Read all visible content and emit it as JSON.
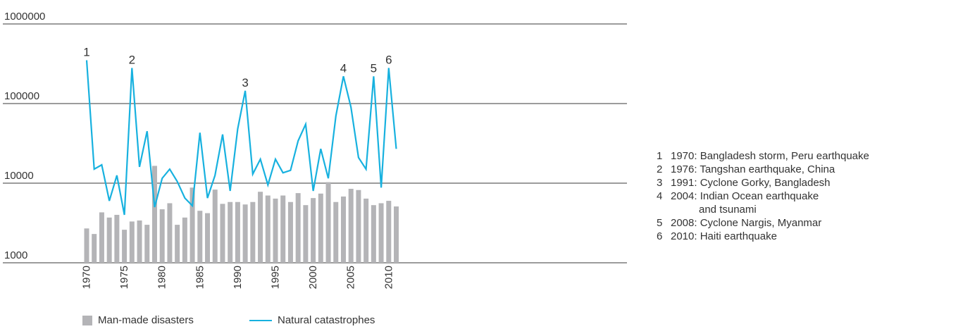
{
  "chart_data": {
    "type": "bar+line",
    "y_scale": "log",
    "ylim": [
      1000,
      1000000
    ],
    "y_ticks": [
      {
        "value": 1000,
        "label": "1000"
      },
      {
        "value": 10000,
        "label": "10000"
      },
      {
        "value": 100000,
        "label": "100000"
      },
      {
        "value": 1000000,
        "label": "1000000"
      }
    ],
    "x_ticks": [
      "1970",
      "1975",
      "1980",
      "1985",
      "1990",
      "1995",
      "2000",
      "2005",
      "2010"
    ],
    "years": [
      1970,
      1971,
      1972,
      1973,
      1974,
      1975,
      1976,
      1977,
      1978,
      1979,
      1980,
      1981,
      1982,
      1983,
      1984,
      1985,
      1986,
      1987,
      1988,
      1989,
      1990,
      1991,
      1992,
      1993,
      1994,
      1995,
      1996,
      1997,
      1998,
      1999,
      2000,
      2001,
      2002,
      2003,
      2004,
      2005,
      2006,
      2007,
      2008,
      2009,
      2010,
      2011
    ],
    "series": [
      {
        "name": "Man-made disasters",
        "type": "bar",
        "color": "#b4b4b7",
        "values": [
          2700,
          2300,
          4300,
          3700,
          4000,
          2600,
          3300,
          3400,
          3000,
          16500,
          4700,
          5600,
          3000,
          3700,
          8800,
          4500,
          4200,
          8300,
          5500,
          5800,
          5800,
          5400,
          5800,
          7800,
          7000,
          6400,
          7000,
          5800,
          7500,
          5300,
          6500,
          7400,
          10300,
          5800,
          6800,
          8500,
          8200,
          6400,
          5300,
          5600,
          6000,
          5100
        ]
      },
      {
        "name": "Natural catastrophes",
        "type": "line",
        "color": "#17b1df",
        "values": [
          350000,
          15000,
          17000,
          6000,
          12500,
          4000,
          280000,
          16000,
          45000,
          5000,
          11500,
          15000,
          10500,
          6500,
          5200,
          43000,
          6500,
          12500,
          41000,
          8000,
          48000,
          145000,
          13000,
          20000,
          9500,
          20000,
          13500,
          14500,
          34000,
          55000,
          8000,
          27000,
          11500,
          70000,
          220000,
          90000,
          21000,
          15000,
          220000,
          8800,
          280000,
          27000
        ]
      }
    ],
    "annotations": [
      {
        "label": "1",
        "year": 1970,
        "value": 350000
      },
      {
        "label": "2",
        "year": 1976,
        "value": 280000
      },
      {
        "label": "3",
        "year": 1991,
        "value": 145000
      },
      {
        "label": "4",
        "year": 2004,
        "value": 220000
      },
      {
        "label": "5",
        "year": 2008,
        "value": 220000
      },
      {
        "label": "6",
        "year": 2010,
        "value": 280000
      }
    ],
    "legend": {
      "placement": "bottom",
      "bar_label": "Man-made disasters",
      "line_label": "Natural catastrophes"
    },
    "notes": {
      "n1": {
        "num": "1",
        "text": "1970: Bangladesh storm, Peru earthquake"
      },
      "n2": {
        "num": "2",
        "text": "1976: Tangshan earthquake, China"
      },
      "n3": {
        "num": "3",
        "text": "1991: Cyclone Gorky, Bangladesh"
      },
      "n4": {
        "num": "4",
        "text": "2004: Indian Ocean earthquake",
        "text2": "and tsunami"
      },
      "n5": {
        "num": "5",
        "text": "2008: Cyclone Nargis, Myanmar"
      },
      "n6": {
        "num": "6",
        "text": "2010: Haiti earthquake"
      }
    }
  }
}
